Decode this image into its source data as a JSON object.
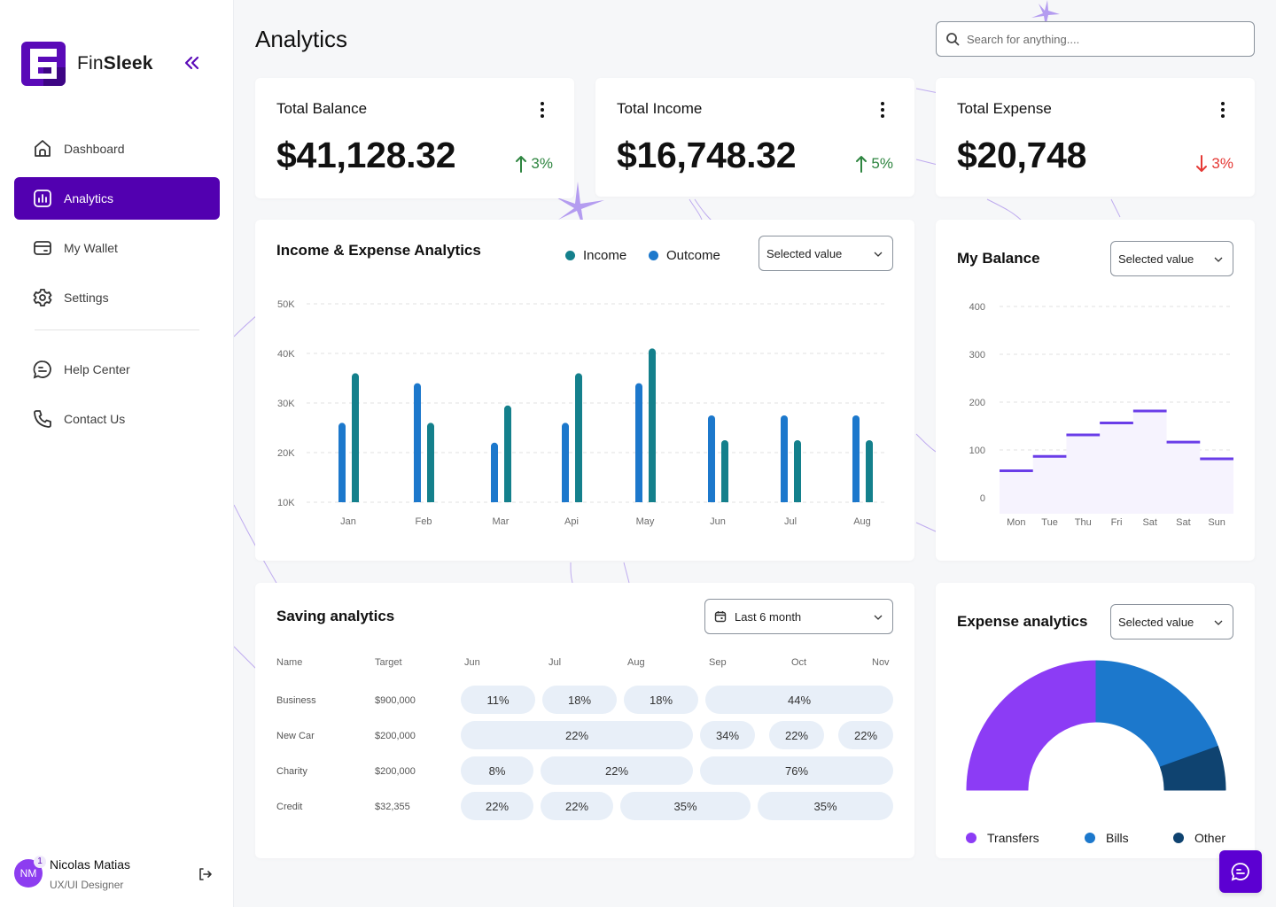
{
  "app": {
    "brand_light": "Fin",
    "brand_bold": "Sleek",
    "accent": "#5200b0"
  },
  "sidebar": {
    "items": [
      {
        "label": "Dashboard",
        "icon": "home-icon",
        "active": false
      },
      {
        "label": "Analytics",
        "icon": "bar-chart-icon",
        "active": true
      },
      {
        "label": "My Wallet",
        "icon": "wallet-icon",
        "active": false
      },
      {
        "label": "Settings",
        "icon": "gear-icon",
        "active": false
      }
    ],
    "secondary_items": [
      {
        "label": "Help Center",
        "icon": "chat-bubble-icon"
      },
      {
        "label": "Contact Us",
        "icon": "phone-icon"
      }
    ],
    "user": {
      "initials": "NM",
      "name": "Nicolas Matias",
      "role": "UX/UI Designer",
      "notifications": "1"
    }
  },
  "header": {
    "title": "Analytics",
    "search_placeholder": "Search for anything...."
  },
  "stats": [
    {
      "title": "Total Balance",
      "value": "$41,128.32",
      "change": "3%",
      "direction": "up"
    },
    {
      "title": "Total Income",
      "value": "$16,748.32",
      "change": "5%",
      "direction": "up"
    },
    {
      "title": "Total Expense",
      "value": "$20,748",
      "direction": "down",
      "change": "3%"
    }
  ],
  "income_expense": {
    "title": "Income & Expense Analytics",
    "select_value": "Selected value",
    "legend": [
      {
        "label": "Income",
        "color": "#14808c"
      },
      {
        "label": "Outcome",
        "color": "#1c78cc"
      }
    ]
  },
  "my_balance": {
    "title": "My Balance",
    "select_value": "Selected value"
  },
  "saving": {
    "title": "Saving analytics",
    "select_value": "Last 6 month",
    "columns": [
      "Name",
      "Target",
      "Jun",
      "Jul",
      "Aug",
      "Sep",
      "Oct",
      "Nov"
    ],
    "rows": [
      {
        "name": "Business",
        "target": "$900,000",
        "pills": [
          "11%",
          "18%",
          "18%",
          "44%"
        ]
      },
      {
        "name": "New Car",
        "target": "$200,000",
        "pills": [
          "22%",
          "34%",
          "22%",
          "22%"
        ]
      },
      {
        "name": "Charity",
        "target": "$200,000",
        "pills": [
          "8%",
          "22%",
          "76%"
        ]
      },
      {
        "name": "Credit",
        "target": "$32,355",
        "pills": [
          "22%",
          "22%",
          "35%",
          "35%"
        ]
      }
    ]
  },
  "expense": {
    "title": "Expense analytics",
    "select_value": "Selected value"
  },
  "chart_data": [
    {
      "type": "bar",
      "title": "Income & Expense Analytics",
      "categories": [
        "Jan",
        "Feb",
        "Mar",
        "Api",
        "May",
        "Jun",
        "Jul",
        "Aug"
      ],
      "series": [
        {
          "name": "Outcome",
          "color": "#1c78cc",
          "values": [
            26,
            34,
            22,
            26,
            34,
            27.5,
            27.5,
            27.5
          ]
        },
        {
          "name": "Income",
          "color": "#14808c",
          "values": [
            36,
            26,
            29.5,
            36,
            41,
            22.5,
            22.5,
            22.5
          ]
        }
      ],
      "yticks": [
        "10K",
        "20K",
        "30K",
        "40K",
        "50K"
      ],
      "ylim": [
        10,
        50
      ],
      "yunit": "K",
      "grid": true,
      "legend": "top-right"
    },
    {
      "type": "area",
      "title": "My Balance",
      "categories": [
        "Mon",
        "Tue",
        "Thu",
        "Fri",
        "Sat",
        "Sat",
        "Sun"
      ],
      "values": [
        75,
        105,
        150,
        175,
        200,
        135,
        100
      ],
      "yticks": [
        "0",
        "100",
        "200",
        "300",
        "400"
      ],
      "ylim": [
        0,
        400
      ],
      "color": "#6a3de8",
      "fill": "#f6f3fe",
      "grid": true
    },
    {
      "type": "pie",
      "title": "Expense analytics",
      "style": "half-donut",
      "slices": [
        {
          "label": "Transfers",
          "value": 50,
          "color": "#8c3cf5"
        },
        {
          "label": "Bills",
          "value": 39,
          "color": "#1c78cc"
        },
        {
          "label": "Other",
          "value": 11,
          "color": "#0f4370"
        }
      ],
      "legend": "bottom"
    }
  ]
}
